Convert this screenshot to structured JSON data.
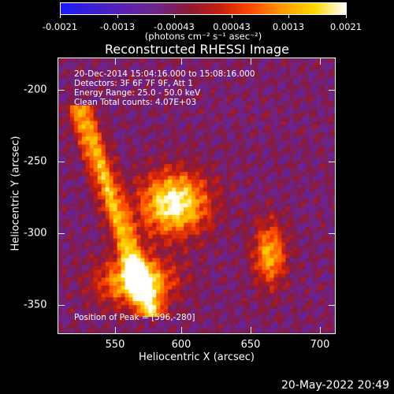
{
  "colorbar": {
    "tick_labels": [
      "-0.0021",
      "-0.0013",
      "-0.00043",
      "0.00043",
      "0.0013",
      "0.0021"
    ],
    "units_label": "(photons cm⁻² s⁻¹ asec⁻²)"
  },
  "chart_data": {
    "type": "heatmap",
    "title": "Reconstructed RHESSI Image",
    "xlabel": "Heliocentric X (arcsec)",
    "ylabel": "Heliocentric Y (arcsec)",
    "xlim": [
      514,
      710
    ],
    "ylim": [
      -372,
      -177
    ],
    "x_ticks": [
      550,
      600,
      650,
      700
    ],
    "x_tick_labels": [
      "550",
      "600",
      "650",
      "700"
    ],
    "y_ticks": [
      -200,
      -250,
      -300,
      -350
    ],
    "y_tick_labels": [
      "-200",
      "-250",
      "-300",
      "-350"
    ],
    "value_range": [
      -0.0021,
      0.0021
    ],
    "colormap": [
      "#1a1aff",
      "#3b1fd0",
      "#5a22b0",
      "#6e248c",
      "#8a1a3a",
      "#c41e0f",
      "#ff4a00",
      "#ff9a00",
      "#ffd800",
      "#ffffff"
    ],
    "peak_position": [
      596,
      -280
    ],
    "annotations": [
      "20-Dec-2014 15:04:16.000 to 15:08:16.000",
      "Detectors: 3F 6F 7F 9F, Att 1",
      "Energy Range: 25.0 - 50.0 keV",
      "Clean     Total counts: 4.07E+03"
    ],
    "peak_label": "Position of Peak = [596,-280]"
  },
  "footer": {
    "date_label": "20-May-2022 20:49"
  }
}
